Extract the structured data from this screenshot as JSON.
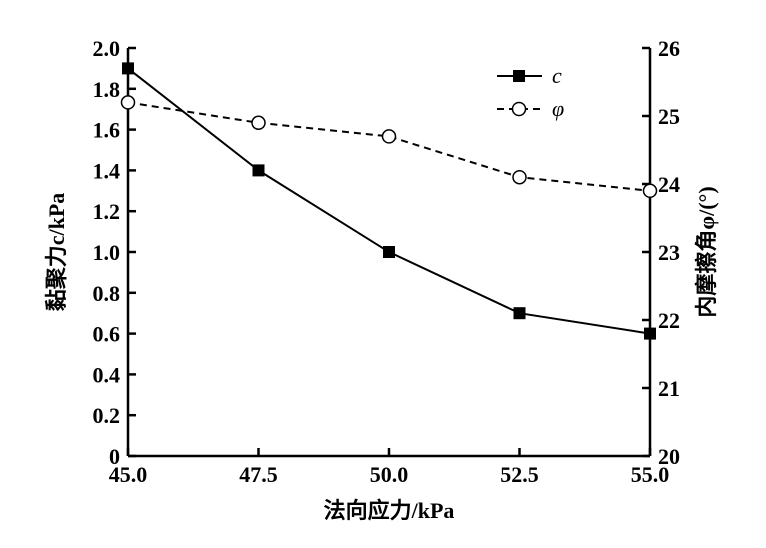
{
  "chart_data": {
    "type": "line",
    "title": "",
    "xlabel": "法向应力/kPa",
    "ylabel": "黏聚力c/kPa",
    "y2label": "内摩擦角φ/(°)",
    "x": [
      45.0,
      47.5,
      50.0,
      52.5,
      55.0
    ],
    "xlim": [
      45.0,
      55.0
    ],
    "ylim": [
      0,
      2.0
    ],
    "y2lim": [
      20,
      26
    ],
    "xticks": [
      "45.0",
      "47.5",
      "50.0",
      "52.5",
      "55.0"
    ],
    "yticks": [
      "0",
      "0.2",
      "0.4",
      "0.6",
      "0.8",
      "1.0",
      "1.2",
      "1.4",
      "1.6",
      "1.8",
      "2.0"
    ],
    "y2ticks": [
      "20",
      "21",
      "22",
      "23",
      "24",
      "25",
      "26"
    ],
    "legend_position": "top-right",
    "grid": false,
    "series": [
      {
        "name": "c",
        "axis": "left",
        "marker": "filled-square",
        "line": "solid",
        "values": [
          1.9,
          1.4,
          1.0,
          0.7,
          0.6
        ]
      },
      {
        "name": "φ",
        "axis": "right",
        "marker": "open-circle",
        "line": "dashed",
        "values": [
          25.2,
          24.9,
          24.7,
          24.1,
          23.9
        ]
      }
    ]
  }
}
